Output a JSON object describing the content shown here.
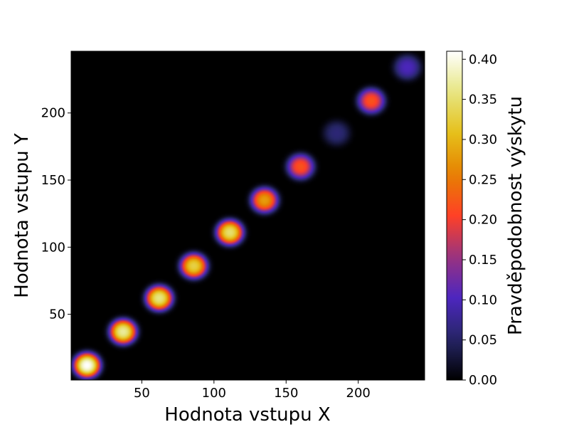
{
  "chart_data": {
    "type": "heatmap",
    "title": "",
    "xlabel": "Hodnota vstupu X",
    "ylabel": "Hodnota vstupu Y",
    "colorbar_label": "Pravděpodobnost výskytu",
    "colormap": "CMRmap",
    "xlim": [
      1,
      246
    ],
    "ylim": [
      1,
      246
    ],
    "xticks": [
      50,
      100,
      150,
      200
    ],
    "xtick_labels": [
      "50",
      "100",
      "150",
      "200"
    ],
    "yticks": [
      50,
      100,
      150,
      200
    ],
    "ytick_labels": [
      "50",
      "100",
      "150",
      "200"
    ],
    "colorbar_range": [
      0.0,
      0.41
    ],
    "colorbar_ticks": [
      0.0,
      0.05,
      0.1,
      0.15,
      0.2,
      0.25,
      0.3,
      0.35,
      0.4
    ],
    "colorbar_tick_labels": [
      "0.00",
      "0.05",
      "0.10",
      "0.15",
      "0.20",
      "0.25",
      "0.30",
      "0.35",
      "0.40"
    ],
    "peaks": [
      {
        "x": 12,
        "y": 12,
        "value": 0.41
      },
      {
        "x": 37,
        "y": 37,
        "value": 0.37
      },
      {
        "x": 62,
        "y": 62,
        "value": 0.36
      },
      {
        "x": 86,
        "y": 86,
        "value": 0.33
      },
      {
        "x": 111,
        "y": 111,
        "value": 0.35
      },
      {
        "x": 135,
        "y": 135,
        "value": 0.28
      },
      {
        "x": 160,
        "y": 160,
        "value": 0.22
      },
      {
        "x": 185,
        "y": 185,
        "value": 0.06
      },
      {
        "x": 209,
        "y": 209,
        "value": 0.22
      },
      {
        "x": 234,
        "y": 234,
        "value": 0.1
      }
    ],
    "grid": false
  }
}
